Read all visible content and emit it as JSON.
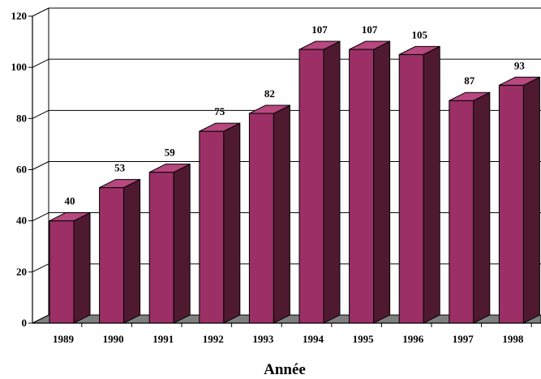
{
  "chart_data": {
    "type": "bar",
    "categories": [
      "1989",
      "1990",
      "1991",
      "1992",
      "1993",
      "1994",
      "1995",
      "1996",
      "1997",
      "1998"
    ],
    "values": [
      40,
      53,
      59,
      75,
      82,
      107,
      107,
      105,
      87,
      93
    ],
    "data_labels": [
      "40",
      "53",
      "59",
      "75",
      "82",
      "107",
      "107",
      "105",
      "87",
      "93"
    ],
    "title": "",
    "xlabel": "Année",
    "ylabel": "",
    "ylim": [
      0,
      120
    ],
    "yticks": [
      0,
      20,
      40,
      60,
      80,
      100,
      120
    ],
    "ytick_labels": [
      "0",
      "20",
      "40",
      "60",
      "80",
      "100",
      "120"
    ],
    "grid": true,
    "legend": "none",
    "style": "3d-column",
    "colors": {
      "bar_front": "#9B2F66",
      "bar_side": "#4F1A30",
      "bar_top": "#B8487F",
      "floor": "#808080",
      "gridline": "#000000"
    }
  }
}
